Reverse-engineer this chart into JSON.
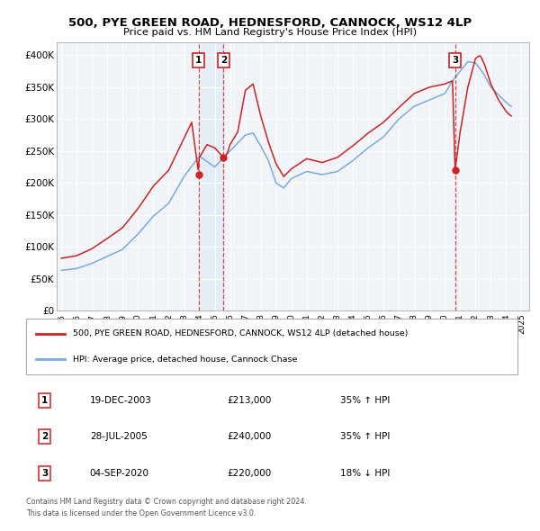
{
  "title1": "500, PYE GREEN ROAD, HEDNESFORD, CANNOCK, WS12 4LP",
  "title2": "Price paid vs. HM Land Registry's House Price Index (HPI)",
  "red_label": "500, PYE GREEN ROAD, HEDNESFORD, CANNOCK, WS12 4LP (detached house)",
  "blue_label": "HPI: Average price, detached house, Cannock Chase",
  "footer1": "Contains HM Land Registry data © Crown copyright and database right 2024.",
  "footer2": "This data is licensed under the Open Government Licence v3.0.",
  "transactions": [
    {
      "num": 1,
      "date": "19-DEC-2003",
      "price": 213000,
      "pct": "35%",
      "dir": "↑",
      "x": 2003.96
    },
    {
      "num": 2,
      "date": "28-JUL-2005",
      "price": 240000,
      "pct": "35%",
      "dir": "↑",
      "x": 2005.57
    },
    {
      "num": 3,
      "date": "04-SEP-2020",
      "price": 220000,
      "pct": "18%",
      "dir": "↓",
      "x": 2020.67
    }
  ],
  "ylim": [
    0,
    420000
  ],
  "yticks": [
    0,
    50000,
    100000,
    150000,
    200000,
    250000,
    300000,
    350000,
    400000
  ],
  "ytick_labels": [
    "£0",
    "£50K",
    "£100K",
    "£150K",
    "£200K",
    "£250K",
    "£300K",
    "£350K",
    "£400K"
  ],
  "xlim_start": 1994.7,
  "xlim_end": 2025.5,
  "background_color": "#f0f4f8"
}
